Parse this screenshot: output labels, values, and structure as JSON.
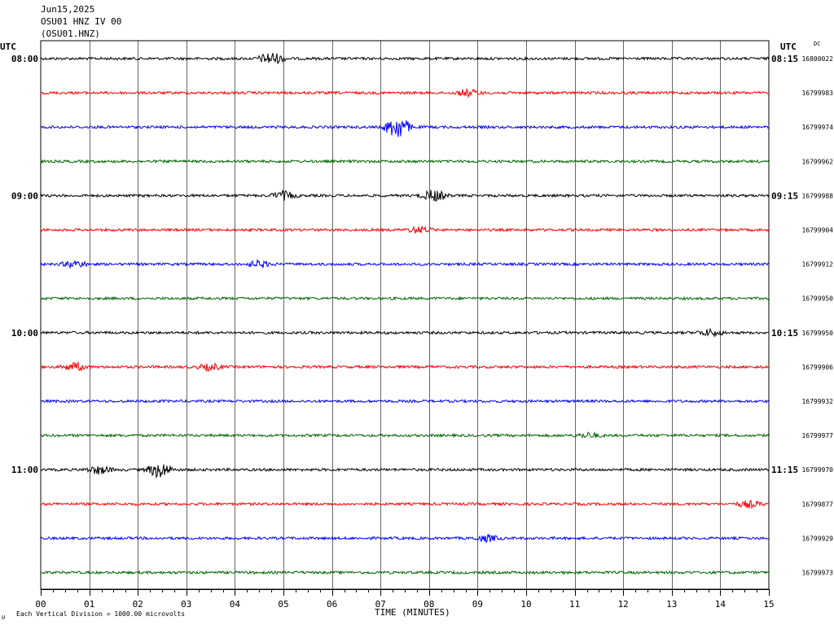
{
  "header": {
    "date": "Jun15,2025",
    "station": "OSU01 HNZ IV 00",
    "channel": "(OSU01.HNZ)"
  },
  "left_tz_label": "UTC",
  "right_tz_label": "UTC",
  "dc_label": "DC",
  "footer_note": "Each Vertical Division = 1000.00 microvolts",
  "corner_mark": "µ",
  "chart_data": {
    "type": "line",
    "title": "",
    "xlabel": "TIME (MINUTES)",
    "ylabel": "",
    "xlim": [
      0,
      15
    ],
    "x_ticks": [
      "00",
      "01",
      "02",
      "03",
      "04",
      "05",
      "06",
      "07",
      "08",
      "09",
      "10",
      "11",
      "12",
      "13",
      "14",
      "15"
    ],
    "grid": true,
    "trace_colors": [
      "#000000",
      "#ff0000",
      "#0000ff",
      "#006400"
    ],
    "traces": [
      {
        "left_label": "08:00",
        "right_label": "08:15",
        "dc": "16800022",
        "color": "#000000",
        "events": [
          {
            "minute": 4.75,
            "amp": 8
          }
        ]
      },
      {
        "left_label": "",
        "right_label": "",
        "dc": "16799983",
        "color": "#ff0000",
        "events": [
          {
            "minute": 8.8,
            "amp": 4
          }
        ]
      },
      {
        "left_label": "",
        "right_label": "",
        "dc": "16799974",
        "color": "#0000ff",
        "events": [
          {
            "minute": 7.35,
            "amp": 15
          }
        ]
      },
      {
        "left_label": "",
        "right_label": "",
        "dc": "16799962",
        "color": "#006400",
        "events": []
      },
      {
        "left_label": "09:00",
        "right_label": "09:15",
        "dc": "16799988",
        "color": "#000000",
        "events": [
          {
            "minute": 5.0,
            "amp": 5
          },
          {
            "minute": 8.1,
            "amp": 7
          }
        ]
      },
      {
        "left_label": "",
        "right_label": "",
        "dc": "16799904",
        "color": "#ff0000",
        "events": [
          {
            "minute": 7.8,
            "amp": 4
          }
        ]
      },
      {
        "left_label": "",
        "right_label": "",
        "dc": "16799912",
        "color": "#0000ff",
        "events": [
          {
            "minute": 0.7,
            "amp": 4
          },
          {
            "minute": 4.5,
            "amp": 4
          }
        ]
      },
      {
        "left_label": "",
        "right_label": "",
        "dc": "16799950",
        "color": "#006400",
        "events": []
      },
      {
        "left_label": "10:00",
        "right_label": "10:15",
        "dc": "16799950",
        "color": "#000000",
        "events": [
          {
            "minute": 13.8,
            "amp": 4
          }
        ]
      },
      {
        "left_label": "",
        "right_label": "",
        "dc": "16799906",
        "color": "#ff0000",
        "events": [
          {
            "minute": 0.7,
            "amp": 5
          },
          {
            "minute": 3.5,
            "amp": 4
          }
        ]
      },
      {
        "left_label": "",
        "right_label": "",
        "dc": "16799932",
        "color": "#0000ff",
        "events": []
      },
      {
        "left_label": "",
        "right_label": "",
        "dc": "16799977",
        "color": "#006400",
        "events": [
          {
            "minute": 11.3,
            "amp": 3
          }
        ]
      },
      {
        "left_label": "11:00",
        "right_label": "11:15",
        "dc": "16799970",
        "color": "#000000",
        "events": [
          {
            "minute": 1.2,
            "amp": 5
          },
          {
            "minute": 2.45,
            "amp": 10
          }
        ]
      },
      {
        "left_label": "",
        "right_label": "",
        "dc": "16799877",
        "color": "#ff0000",
        "events": [
          {
            "minute": 14.6,
            "amp": 4
          }
        ]
      },
      {
        "left_label": "",
        "right_label": "",
        "dc": "16799929",
        "color": "#0000ff",
        "events": [
          {
            "minute": 9.2,
            "amp": 4
          }
        ]
      },
      {
        "left_label": "",
        "right_label": "",
        "dc": "16799973",
        "color": "#006400",
        "events": []
      }
    ]
  }
}
